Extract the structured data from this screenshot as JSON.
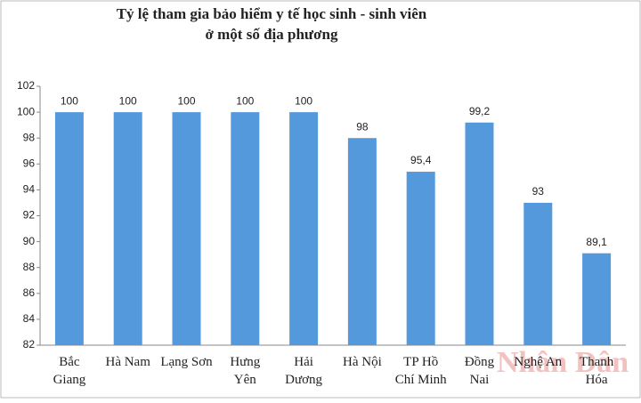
{
  "chart_data": {
    "type": "bar",
    "title": [
      "Tỷ lệ tham gia  bảo hiểm y tế học sinh - sinh viên",
      "ở một số địa phương"
    ],
    "categories": [
      "Bắc\nGiang",
      "Hà Nam",
      "Lạng  Sơn",
      "Hưng\nYên",
      "Hải\nDương",
      "Hà Nội",
      "TP Hồ\nChí Minh",
      "Đồng\nNai",
      "Nghệ An",
      "Thanh\nHóa"
    ],
    "values": [
      100,
      100,
      100,
      100,
      100,
      98,
      95.4,
      99.2,
      93,
      89.1
    ],
    "value_labels": [
      "100",
      "100",
      "100",
      "100",
      "100",
      "98",
      "95,4",
      "99,2",
      "93",
      "89,1"
    ],
    "color": "#5599dd",
    "ylim": [
      82,
      102
    ],
    "yticks": [
      82,
      84,
      86,
      88,
      90,
      92,
      94,
      96,
      98,
      100,
      102
    ],
    "grid": false,
    "watermark": "Nhân Dân"
  }
}
